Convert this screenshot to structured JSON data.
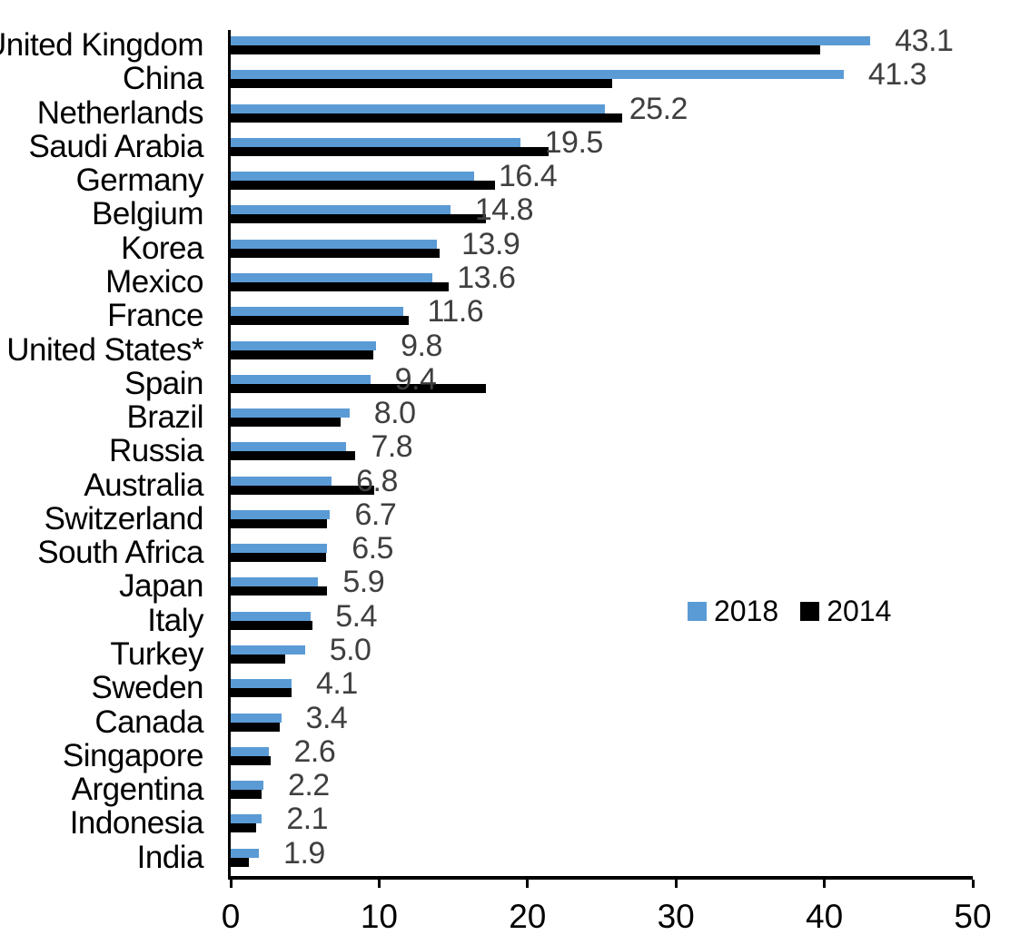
{
  "chart_data": {
    "type": "bar",
    "orientation": "horizontal",
    "title": "",
    "xlabel": "",
    "ylabel": "",
    "categories": [
      "United Kingdom",
      "China",
      "Netherlands",
      "Saudi Arabia",
      "Germany",
      "Belgium",
      "Korea",
      "Mexico",
      "France",
      "United States*",
      "Spain",
      "Brazil",
      "Russia",
      "Australia",
      "Switzerland",
      "South Africa",
      "Japan",
      "Italy",
      "Turkey",
      "Sweden",
      "Canada",
      "Singapore",
      "Argentina",
      "Indonesia",
      "India"
    ],
    "series": [
      {
        "name": "2018",
        "color": "#5B9BD5",
        "data_labels": "shown",
        "values": [
          43.1,
          41.3,
          25.2,
          19.5,
          16.4,
          14.8,
          13.9,
          13.6,
          11.6,
          9.8,
          9.4,
          8.0,
          7.8,
          6.8,
          6.7,
          6.5,
          5.9,
          5.4,
          5.0,
          4.1,
          3.4,
          2.6,
          2.2,
          2.1,
          1.9
        ]
      },
      {
        "name": "2014",
        "color": "#000000",
        "data_labels": "none",
        "values": [
          39.7,
          25.7,
          26.4,
          21.4,
          17.8,
          17.2,
          14.1,
          14.7,
          12.0,
          9.6,
          17.2,
          7.4,
          8.4,
          9.7,
          6.5,
          6.4,
          6.5,
          5.5,
          3.7,
          4.1,
          3.3,
          2.7,
          2.1,
          1.7,
          1.2
        ]
      }
    ],
    "xlim": [
      0,
      50
    ],
    "xticks": [
      0,
      10,
      20,
      30,
      40,
      50
    ],
    "grid": false,
    "legend_position": "center-right",
    "value_label_color": "#3F3F3F",
    "axis_color": "#000000",
    "background_color": "#FFFFFF"
  }
}
